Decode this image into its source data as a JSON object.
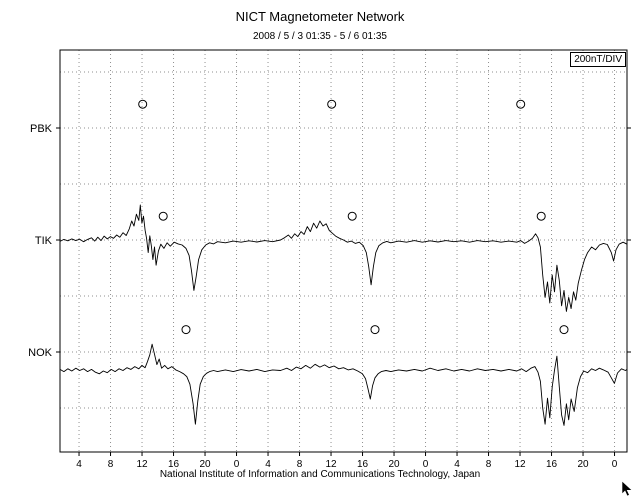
{
  "chart_data": {
    "type": "line",
    "title": "NICT Magnetometer Network",
    "subtitle": "2008 / 5 / 3  01:35 -  5 / 6  01:35",
    "scale_label": "200nT/DIV",
    "footer": "National Institute of Information and Communications Technology, Japan",
    "nt_per_div": 200,
    "x_range_hours": 72,
    "x_first_tick_offset_hours": 2.4167,
    "x_tick_interval_hours": 4,
    "x_ticks": [
      "4",
      "8",
      "12",
      "16",
      "20",
      "0",
      "4",
      "8",
      "12",
      "16",
      "20",
      "0",
      "4",
      "8",
      "12",
      "16",
      "20",
      "0"
    ],
    "grid": true,
    "legend": "none",
    "stations": [
      {
        "name": "PBK",
        "has_data": false,
        "noon_mark_value": 85,
        "noon_marks_hours": [
          10.5,
          34.5,
          58.5
        ],
        "points": []
      },
      {
        "name": "TIK",
        "has_data": true,
        "noon_mark_value": 85,
        "noon_marks_hours": [
          13.1,
          37.1,
          61.1
        ],
        "points": [
          [
            0,
            -5
          ],
          [
            0.5,
            2
          ],
          [
            1,
            -3
          ],
          [
            1.5,
            4
          ],
          [
            2,
            -2
          ],
          [
            2.5,
            3
          ],
          [
            3,
            -6
          ],
          [
            3.5,
            2
          ],
          [
            4,
            8
          ],
          [
            4.4,
            -4
          ],
          [
            4.8,
            10
          ],
          [
            5.2,
            -2
          ],
          [
            5.6,
            14
          ],
          [
            6,
            4
          ],
          [
            6.4,
            12
          ],
          [
            6.8,
            6
          ],
          [
            7.2,
            18
          ],
          [
            7.6,
            10
          ],
          [
            8,
            26
          ],
          [
            8.4,
            16
          ],
          [
            8.8,
            40
          ],
          [
            9.1,
            68
          ],
          [
            9.4,
            50
          ],
          [
            9.7,
            92
          ],
          [
            10,
            70
          ],
          [
            10.2,
            125
          ],
          [
            10.4,
            60
          ],
          [
            10.6,
            85
          ],
          [
            10.8,
            35
          ],
          [
            11,
            5
          ],
          [
            11.2,
            -45
          ],
          [
            11.4,
            15
          ],
          [
            11.6,
            -20
          ],
          [
            11.8,
            -70
          ],
          [
            12,
            -25
          ],
          [
            12.2,
            -90
          ],
          [
            12.5,
            -40
          ],
          [
            12.8,
            -15
          ],
          [
            13.2,
            -30
          ],
          [
            13.6,
            -10
          ],
          [
            14,
            -22
          ],
          [
            14.5,
            -8
          ],
          [
            15,
            -14
          ],
          [
            15.5,
            -18
          ],
          [
            16,
            -30
          ],
          [
            16.4,
            -55
          ],
          [
            16.7,
            -110
          ],
          [
            17,
            -180
          ],
          [
            17.3,
            -130
          ],
          [
            17.6,
            -70
          ],
          [
            18,
            -35
          ],
          [
            18.5,
            -18
          ],
          [
            19,
            -10
          ],
          [
            19.5,
            -14
          ],
          [
            20,
            -6
          ],
          [
            21,
            -10
          ],
          [
            22,
            -4
          ],
          [
            23,
            -8
          ],
          [
            24,
            -3
          ],
          [
            25,
            -7
          ],
          [
            26,
            -2
          ],
          [
            27,
            -6
          ],
          [
            28,
            0
          ],
          [
            28.5,
            8
          ],
          [
            29,
            18
          ],
          [
            29.4,
            6
          ],
          [
            29.8,
            22
          ],
          [
            30.2,
            12
          ],
          [
            30.6,
            30
          ],
          [
            31,
            20
          ],
          [
            31.4,
            48
          ],
          [
            31.8,
            30
          ],
          [
            32.2,
            60
          ],
          [
            32.6,
            42
          ],
          [
            33,
            68
          ],
          [
            33.4,
            50
          ],
          [
            33.8,
            58
          ],
          [
            34.2,
            34
          ],
          [
            34.6,
            24
          ],
          [
            35,
            14
          ],
          [
            35.5,
            6
          ],
          [
            36,
            0
          ],
          [
            36.5,
            -8
          ],
          [
            37,
            -4
          ],
          [
            37.5,
            -12
          ],
          [
            38,
            -8
          ],
          [
            38.5,
            -20
          ],
          [
            38.9,
            -45
          ],
          [
            39.2,
            -95
          ],
          [
            39.5,
            -160
          ],
          [
            39.8,
            -95
          ],
          [
            40.1,
            -45
          ],
          [
            40.5,
            -20
          ],
          [
            41,
            -10
          ],
          [
            41.5,
            -5
          ],
          [
            42,
            -10
          ],
          [
            43,
            -4
          ],
          [
            44,
            -8
          ],
          [
            45,
            -2
          ],
          [
            46,
            -8
          ],
          [
            47,
            -3
          ],
          [
            48,
            -7
          ],
          [
            49,
            -2
          ],
          [
            50,
            -6
          ],
          [
            51,
            -3
          ],
          [
            52,
            -8
          ],
          [
            53,
            -2
          ],
          [
            54,
            -6
          ],
          [
            55,
            -3
          ],
          [
            56,
            -8
          ],
          [
            57,
            -4
          ],
          [
            58,
            -8
          ],
          [
            58.5,
            -2
          ],
          [
            59,
            -12
          ],
          [
            59.5,
            -4
          ],
          [
            60,
            6
          ],
          [
            60.4,
            22
          ],
          [
            60.7,
            8
          ],
          [
            61,
            -25
          ],
          [
            61.3,
            -125
          ],
          [
            61.6,
            -205
          ],
          [
            61.9,
            -150
          ],
          [
            62.2,
            -225
          ],
          [
            62.5,
            -125
          ],
          [
            62.8,
            -185
          ],
          [
            63.1,
            -90
          ],
          [
            63.4,
            -145
          ],
          [
            63.7,
            -235
          ],
          [
            64,
            -180
          ],
          [
            64.3,
            -255
          ],
          [
            64.6,
            -205
          ],
          [
            64.9,
            -245
          ],
          [
            65.2,
            -185
          ],
          [
            65.5,
            -215
          ],
          [
            65.8,
            -155
          ],
          [
            66.2,
            -110
          ],
          [
            66.6,
            -70
          ],
          [
            67,
            -45
          ],
          [
            67.5,
            -25
          ],
          [
            68,
            -35
          ],
          [
            68.5,
            -18
          ],
          [
            69,
            -12
          ],
          [
            69.5,
            -16
          ],
          [
            70,
            -45
          ],
          [
            70.3,
            -75
          ],
          [
            70.6,
            -35
          ],
          [
            71,
            -15
          ],
          [
            71.5,
            -8
          ],
          [
            72,
            -15
          ]
        ]
      },
      {
        "name": "NOK",
        "has_data": true,
        "noon_mark_value": 80,
        "noon_marks_hours": [
          16,
          40,
          64
        ],
        "points": [
          [
            0,
            -62
          ],
          [
            0.5,
            -70
          ],
          [
            1,
            -60
          ],
          [
            1.5,
            -68
          ],
          [
            2,
            -58
          ],
          [
            2.5,
            -66
          ],
          [
            3,
            -60
          ],
          [
            3.5,
            -70
          ],
          [
            4,
            -62
          ],
          [
            4.5,
            -72
          ],
          [
            5,
            -78
          ],
          [
            5.5,
            -68
          ],
          [
            6,
            -74
          ],
          [
            6.5,
            -62
          ],
          [
            7,
            -70
          ],
          [
            7.5,
            -60
          ],
          [
            8,
            -66
          ],
          [
            8.5,
            -56
          ],
          [
            9,
            -62
          ],
          [
            9.5,
            -52
          ],
          [
            10,
            -60
          ],
          [
            10.4,
            -48
          ],
          [
            10.8,
            -56
          ],
          [
            11.1,
            -35
          ],
          [
            11.4,
            -10
          ],
          [
            11.7,
            28
          ],
          [
            12,
            -8
          ],
          [
            12.3,
            -45
          ],
          [
            12.6,
            -25
          ],
          [
            12.9,
            -58
          ],
          [
            13.3,
            -48
          ],
          [
            13.7,
            -60
          ],
          [
            14.2,
            -52
          ],
          [
            14.7,
            -64
          ],
          [
            15.2,
            -70
          ],
          [
            15.7,
            -78
          ],
          [
            16.1,
            -88
          ],
          [
            16.5,
            -115
          ],
          [
            16.9,
            -185
          ],
          [
            17.2,
            -258
          ],
          [
            17.5,
            -175
          ],
          [
            17.8,
            -115
          ],
          [
            18.2,
            -88
          ],
          [
            18.6,
            -76
          ],
          [
            19,
            -70
          ],
          [
            19.5,
            -66
          ],
          [
            20,
            -70
          ],
          [
            21,
            -64
          ],
          [
            22,
            -70
          ],
          [
            23,
            -63
          ],
          [
            24,
            -68
          ],
          [
            25,
            -62
          ],
          [
            26,
            -70
          ],
          [
            27,
            -64
          ],
          [
            28,
            -66
          ],
          [
            28.8,
            -58
          ],
          [
            29.4,
            -66
          ],
          [
            30,
            -54
          ],
          [
            30.6,
            -60
          ],
          [
            31.2,
            -48
          ],
          [
            31.8,
            -58
          ],
          [
            32.4,
            -44
          ],
          [
            33,
            -54
          ],
          [
            33.6,
            -46
          ],
          [
            34.2,
            -56
          ],
          [
            34.8,
            -50
          ],
          [
            35.4,
            -60
          ],
          [
            36,
            -56
          ],
          [
            36.6,
            -64
          ],
          [
            37.2,
            -60
          ],
          [
            37.8,
            -68
          ],
          [
            38.4,
            -78
          ],
          [
            38.8,
            -95
          ],
          [
            39.1,
            -130
          ],
          [
            39.4,
            -168
          ],
          [
            39.7,
            -120
          ],
          [
            40,
            -92
          ],
          [
            40.4,
            -78
          ],
          [
            40.8,
            -70
          ],
          [
            41.4,
            -66
          ],
          [
            42,
            -70
          ],
          [
            43,
            -64
          ],
          [
            44,
            -68
          ],
          [
            45,
            -62
          ],
          [
            46,
            -68
          ],
          [
            47,
            -58
          ],
          [
            48,
            -66
          ],
          [
            49,
            -60
          ],
          [
            50,
            -68
          ],
          [
            51,
            -62
          ],
          [
            52,
            -68
          ],
          [
            53,
            -60
          ],
          [
            54,
            -66
          ],
          [
            55,
            -62
          ],
          [
            56,
            -68
          ],
          [
            57,
            -62
          ],
          [
            58,
            -68
          ],
          [
            58.6,
            -60
          ],
          [
            59.2,
            -70
          ],
          [
            59.8,
            -58
          ],
          [
            60.3,
            -52
          ],
          [
            60.7,
            -72
          ],
          [
            61,
            -105
          ],
          [
            61.3,
            -200
          ],
          [
            61.6,
            -258
          ],
          [
            61.9,
            -165
          ],
          [
            62.2,
            -235
          ],
          [
            62.5,
            -125
          ],
          [
            62.8,
            -65
          ],
          [
            63.1,
            -15
          ],
          [
            63.4,
            -125
          ],
          [
            63.7,
            -225
          ],
          [
            64,
            -262
          ],
          [
            64.3,
            -185
          ],
          [
            64.6,
            -242
          ],
          [
            64.9,
            -168
          ],
          [
            65.3,
            -212
          ],
          [
            65.7,
            -128
          ],
          [
            66.1,
            -88
          ],
          [
            66.5,
            -68
          ],
          [
            67,
            -74
          ],
          [
            67.5,
            -60
          ],
          [
            68,
            -66
          ],
          [
            68.5,
            -58
          ],
          [
            69,
            -64
          ],
          [
            69.6,
            -72
          ],
          [
            70,
            -92
          ],
          [
            70.4,
            -112
          ],
          [
            70.8,
            -75
          ],
          [
            71.3,
            -60
          ],
          [
            71.8,
            -66
          ],
          [
            72,
            -62
          ]
        ]
      }
    ]
  }
}
